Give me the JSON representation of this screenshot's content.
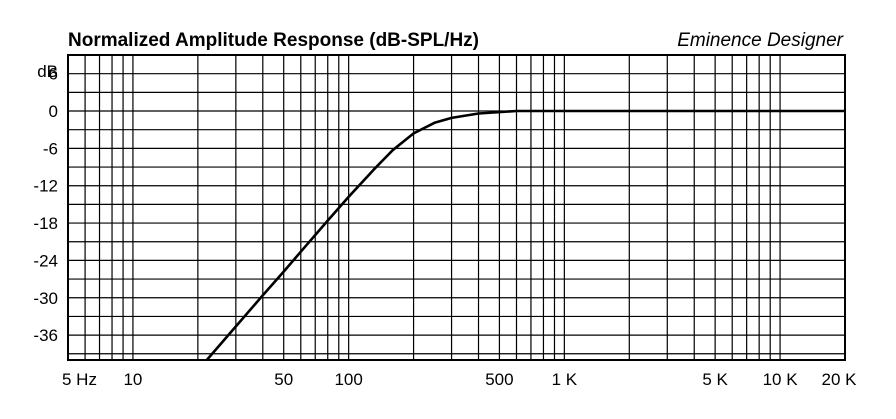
{
  "chart_data": {
    "type": "line",
    "title": "Normalized Amplitude Response (dB-SPL/Hz)",
    "brand": "Eminence Designer",
    "ylabel": "dB",
    "x_scale": "log",
    "xlim": [
      5,
      20000
    ],
    "ylim": [
      -40,
      9
    ],
    "grid": true,
    "x_ticks": [
      {
        "value": 5,
        "label": "5 Hz"
      },
      {
        "value": 10,
        "label": "10"
      },
      {
        "value": 50,
        "label": "50"
      },
      {
        "value": 100,
        "label": "100"
      },
      {
        "value": 500,
        "label": "500"
      },
      {
        "value": 1000,
        "label": "1 K"
      },
      {
        "value": 5000,
        "label": "5 K"
      },
      {
        "value": 10000,
        "label": "10 K"
      },
      {
        "value": 20000,
        "label": "20 K"
      }
    ],
    "y_ticks": [
      {
        "value": 6,
        "label": "6"
      },
      {
        "value": 0,
        "label": "0"
      },
      {
        "value": -6,
        "label": "-6"
      },
      {
        "value": -12,
        "label": "-12"
      },
      {
        "value": -18,
        "label": "-18"
      },
      {
        "value": -24,
        "label": "-24"
      },
      {
        "value": -30,
        "label": "-30"
      },
      {
        "value": -36,
        "label": "-36"
      }
    ],
    "series": [
      {
        "color": "#000000",
        "x": [
          22,
          30,
          40,
          50,
          60,
          80,
          100,
          130,
          160,
          200,
          250,
          300,
          400,
          600,
          1000,
          5000,
          20000
        ],
        "y": [
          -40,
          -34.6,
          -29.6,
          -25.8,
          -22.6,
          -17.6,
          -13.8,
          -9.5,
          -6.3,
          -3.6,
          -1.9,
          -1.1,
          -0.4,
          0,
          0,
          0,
          0
        ]
      }
    ]
  }
}
